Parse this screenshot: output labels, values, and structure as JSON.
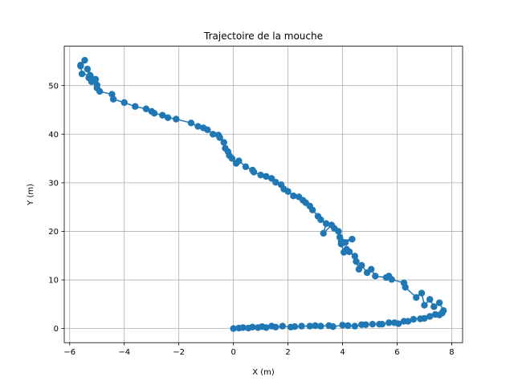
{
  "chart_data": {
    "type": "line",
    "title": "Trajectoire de la mouche",
    "xlabel": "X (m)",
    "ylabel": "Y (m)",
    "xlim": [
      -6.2,
      8.4
    ],
    "ylim": [
      -2.9,
      58.1
    ],
    "xticks": [
      -6,
      -4,
      -2,
      0,
      2,
      4,
      6,
      8
    ],
    "yticks": [
      0,
      10,
      20,
      30,
      40,
      50
    ],
    "xtick_labels": [
      "−6",
      "−4",
      "−2",
      "0",
      "2",
      "4",
      "6",
      "8"
    ],
    "ytick_labels": [
      "0",
      "10",
      "20",
      "30",
      "40",
      "50"
    ],
    "grid": true,
    "legend": "none",
    "markers": "circle",
    "series": [
      {
        "color": "#1f77b4",
        "x": [
          0.0,
          0.2,
          0.35,
          0.55,
          0.7,
          0.9,
          1.05,
          1.2,
          1.4,
          1.55,
          1.8,
          2.1,
          2.25,
          2.5,
          2.8,
          3.0,
          3.2,
          3.5,
          3.65,
          4.0,
          4.2,
          4.45,
          4.7,
          4.85,
          5.1,
          5.35,
          5.45,
          5.7,
          5.9,
          6.05,
          6.25,
          6.4,
          6.6,
          6.85,
          7.0,
          7.2,
          7.4,
          7.55,
          7.65,
          7.7,
          7.55,
          7.35,
          7.2,
          7.0,
          6.9,
          6.7,
          6.3,
          6.25,
          5.8,
          5.7,
          5.6,
          5.2,
          5.05,
          4.9,
          4.7,
          4.6,
          4.5,
          4.45,
          4.25,
          4.15,
          4.05,
          3.95,
          3.95,
          4.35,
          4.1,
          3.9,
          3.85,
          3.7,
          3.6,
          3.3,
          3.4,
          3.2,
          3.1,
          2.9,
          2.8,
          2.65,
          2.55,
          2.4,
          2.2,
          2.0,
          1.85,
          1.75,
          1.55,
          1.4,
          1.2,
          1.0,
          0.75,
          0.7,
          0.45,
          0.2,
          0.1,
          -0.05,
          -0.15,
          -0.2,
          -0.3,
          -0.35,
          -0.5,
          -0.55,
          -0.75,
          -0.95,
          -1.1,
          -1.3,
          -1.55,
          -2.1,
          -2.4,
          -2.6,
          -2.9,
          -3.0,
          -3.2,
          -3.6,
          -4.0,
          -4.4,
          -4.45,
          -4.9,
          -5.0,
          -5.0,
          -5.2,
          -5.3,
          -5.35,
          -5.05,
          -5.25,
          -5.55,
          -5.6,
          -5.45,
          -5.6
        ],
        "y": [
          0.0,
          0.1,
          0.2,
          0.1,
          0.3,
          0.2,
          0.4,
          0.2,
          0.5,
          0.3,
          0.5,
          0.3,
          0.4,
          0.5,
          0.5,
          0.6,
          0.5,
          0.6,
          0.4,
          0.7,
          0.6,
          0.5,
          0.8,
          0.8,
          0.9,
          0.9,
          0.9,
          1.2,
          1.2,
          1.0,
          1.5,
          1.5,
          1.9,
          2.0,
          2.1,
          2.5,
          2.9,
          2.8,
          3.2,
          3.7,
          5.3,
          4.5,
          6.0,
          4.8,
          7.3,
          6.4,
          8.5,
          9.4,
          10.1,
          10.8,
          10.5,
          10.8,
          12.2,
          11.5,
          13.0,
          12.2,
          13.8,
          14.9,
          15.8,
          16.3,
          15.7,
          17.4,
          18.0,
          18.4,
          17.7,
          18.8,
          20.0,
          20.6,
          21.3,
          19.6,
          21.6,
          22.4,
          23.1,
          24.4,
          25.2,
          25.9,
          26.4,
          27.1,
          27.3,
          28.2,
          28.7,
          29.6,
          30.1,
          30.9,
          31.3,
          31.6,
          32.2,
          32.6,
          33.3,
          34.5,
          34.0,
          35.0,
          35.6,
          36.4,
          37.1,
          38.3,
          39.3,
          39.8,
          40.0,
          40.9,
          41.3,
          41.6,
          42.3,
          43.1,
          43.4,
          43.9,
          44.3,
          44.7,
          45.2,
          45.7,
          46.5,
          47.2,
          48.2,
          48.8,
          49.5,
          50.1,
          50.8,
          51.6,
          53.4,
          51.3,
          52.1,
          52.4,
          54.2,
          55.2,
          54.0
        ]
      }
    ]
  }
}
